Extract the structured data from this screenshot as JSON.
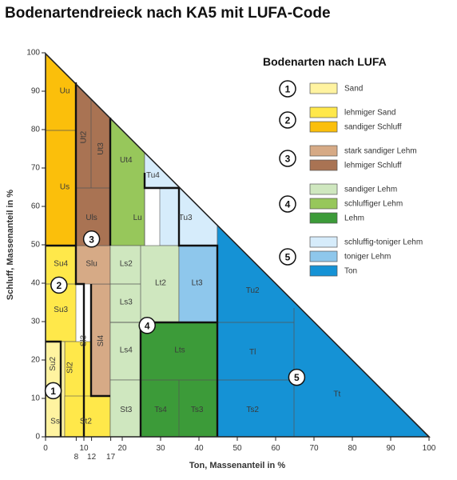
{
  "title": "Bodenartendreieck nach KA5 mit LUFA-Code",
  "x_axis": {
    "label": "Ton, Massenanteil in %",
    "ticks": [
      "0",
      "10",
      "20",
      "30",
      "40",
      "50",
      "60",
      "70",
      "80",
      "90",
      "100"
    ],
    "extra_ticks": [
      "8",
      "12",
      "17"
    ]
  },
  "y_axis": {
    "label": "Schluff, Massenanteil in %",
    "ticks": [
      "0",
      "10",
      "20",
      "30",
      "40",
      "50",
      "60",
      "70",
      "80",
      "90",
      "100"
    ]
  },
  "legend": {
    "title": "Bodenarten nach LUFA",
    "groups": [
      {
        "number": "1",
        "items": [
          {
            "label": "Sand",
            "color": "#fff3a0"
          }
        ]
      },
      {
        "number": "2",
        "items": [
          {
            "label": "lehmiger Sand",
            "color": "#ffe84a"
          },
          {
            "label": "sandiger Schluff",
            "color": "#fbbf0b"
          }
        ]
      },
      {
        "number": "3",
        "items": [
          {
            "label": "stark sandiger Lehm",
            "color": "#d6aa86"
          },
          {
            "label": "lehmiger Schluff",
            "color": "#a97353"
          }
        ]
      },
      {
        "number": "4",
        "items": [
          {
            "label": "sandiger Lehm",
            "color": "#cfe7bf"
          },
          {
            "label": "schluffiger Lehm",
            "color": "#97c75b"
          },
          {
            "label": "Lehm",
            "color": "#3c9b39"
          }
        ]
      },
      {
        "number": "5",
        "items": [
          {
            "label": "schluffig-toniger Lehm",
            "color": "#d6ecfb"
          },
          {
            "label": "toniger Lehm",
            "color": "#8ec7ec"
          },
          {
            "label": "Ton",
            "color": "#1592d5"
          }
        ]
      }
    ]
  },
  "regions": [
    {
      "code": "Uu",
      "x": 5,
      "y": 90,
      "color": "#fbbf0b"
    },
    {
      "code": "Us",
      "x": 5,
      "y": 65,
      "color": "#fbbf0b"
    },
    {
      "code": "Su4",
      "x": 4,
      "y": 45,
      "color": "#ffe84a"
    },
    {
      "code": "Su3",
      "x": 4,
      "y": 33,
      "color": "#ffe84a"
    },
    {
      "code": "Su2",
      "x": 2,
      "y": 19,
      "color": "#ffe84a",
      "vertical": true
    },
    {
      "code": "Sl2",
      "x": 6.5,
      "y": 18,
      "color": "#ffe84a",
      "vertical": true
    },
    {
      "code": "Sl3",
      "x": 10,
      "y": 25,
      "color": "#ffe84a",
      "vertical": true
    },
    {
      "code": "Sl4",
      "x": 14.5,
      "y": 25,
      "color": "#d6aa86",
      "vertical": true
    },
    {
      "code": "Ss",
      "x": 2.5,
      "y": 4,
      "color": "#fff3a0"
    },
    {
      "code": "St2",
      "x": 10.5,
      "y": 4,
      "color": "#ffe84a"
    },
    {
      "code": "Ut2",
      "x": 10,
      "y": 78,
      "color": "#a97353",
      "vertical": true
    },
    {
      "code": "Ut3",
      "x": 14.5,
      "y": 75,
      "color": "#a97353",
      "vertical": true
    },
    {
      "code": "Uls",
      "x": 12,
      "y": 57,
      "color": "#a97353"
    },
    {
      "code": "Slu",
      "x": 12,
      "y": 45,
      "color": "#d6aa86"
    },
    {
      "code": "Ut4",
      "x": 21,
      "y": 72,
      "color": "#97c75b"
    },
    {
      "code": "Lu",
      "x": 24,
      "y": 57,
      "color": "#97c75b"
    },
    {
      "code": "Tu4",
      "x": 28,
      "y": 68,
      "color": "#d6ecfb"
    },
    {
      "code": "Tu3",
      "x": 36.5,
      "y": 57,
      "color": "#d6ecfb"
    },
    {
      "code": "Ls2",
      "x": 21,
      "y": 45,
      "color": "#cfe7bf"
    },
    {
      "code": "Ls3",
      "x": 21,
      "y": 35,
      "color": "#cfe7bf"
    },
    {
      "code": "Ls4",
      "x": 21,
      "y": 22.5,
      "color": "#cfe7bf"
    },
    {
      "code": "Lt2",
      "x": 30,
      "y": 40,
      "color": "#cfe7bf"
    },
    {
      "code": "Lt3",
      "x": 39.5,
      "y": 40,
      "color": "#8ec7ec"
    },
    {
      "code": "Lts",
      "x": 35,
      "y": 22.5,
      "color": "#3c9b39"
    },
    {
      "code": "St3",
      "x": 21,
      "y": 7,
      "color": "#cfe7bf"
    },
    {
      "code": "Ts4",
      "x": 30,
      "y": 7,
      "color": "#3c9b39"
    },
    {
      "code": "Ts3",
      "x": 39.5,
      "y": 7,
      "color": "#3c9b39"
    },
    {
      "code": "Tu2",
      "x": 54,
      "y": 38,
      "color": "#1592d5"
    },
    {
      "code": "Tl",
      "x": 54,
      "y": 22,
      "color": "#1592d5"
    },
    {
      "code": "Ts2",
      "x": 54,
      "y": 7,
      "color": "#1592d5"
    },
    {
      "code": "Tt",
      "x": 76,
      "y": 11,
      "color": "#1592d5"
    }
  ],
  "group_markers": [
    {
      "number": "1",
      "x": 2,
      "y": 12
    },
    {
      "number": "2",
      "x": 3.5,
      "y": 39.5
    },
    {
      "number": "3",
      "x": 12,
      "y": 51.5
    },
    {
      "number": "4",
      "x": 26.5,
      "y": 29
    },
    {
      "number": "5",
      "x": 65.5,
      "y": 15.5
    }
  ]
}
